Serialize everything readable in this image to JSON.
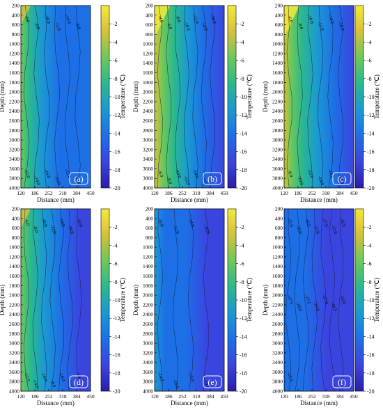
{
  "colors": {
    "scale": [
      "#2a1ea8",
      "#3a45e0",
      "#1d6fe6",
      "#1a99d4",
      "#2bb88e",
      "#6cc85a",
      "#d4c13a",
      "#f4e93a"
    ]
  },
  "chart_data": {
    "type": "heatmap",
    "panels": [
      {
        "label": "(a)",
        "contour_labels": [
          "-6.0",
          "-8.0",
          "-10.0",
          "-12.0",
          "-14.0",
          "-8.0",
          "-12.0",
          "-14.0",
          "-16.0",
          "-10.0",
          "-12.0",
          "-16.0"
        ]
      },
      {
        "label": "(b)",
        "contour_labels": [
          "-4.0",
          "-6.0",
          "-8.0",
          "-10.0",
          "-12.0",
          "-14.0",
          "-16.0",
          "-6.0",
          "-8.0",
          "-10.0",
          "-12.0",
          "-14.0",
          "-16.0"
        ]
      },
      {
        "label": "(c)",
        "contour_labels": [
          "-6.0",
          "-8.0",
          "-10.0",
          "-12.0",
          "-14.0",
          "-16.0",
          "-8.0",
          "-10.0",
          "-12.0",
          "-14.0",
          "-16.0",
          "-8.0"
        ]
      },
      {
        "label": "(d)",
        "contour_labels": [
          "-6.0",
          "-8.0",
          "-10.0",
          "-12.0",
          "-14.0",
          "-16.0",
          "-10.0",
          "-12.0",
          "-14.0",
          "-16.0",
          "-8.0",
          "-10.0",
          "-12.0",
          "-14.0"
        ]
      },
      {
        "label": "(e)",
        "contour_labels": [
          "-10.0",
          "-12.0",
          "-14.0",
          "-16.0",
          "-14.0",
          "-16.0",
          "-12.0",
          "-14.0"
        ]
      },
      {
        "label": "(f)",
        "contour_labels": [
          "-15.5",
          "-16.0",
          "-16.5",
          "-17.0",
          "-17.5",
          "-17.0",
          "-16.5",
          "-17.5",
          "-18.0",
          "-17.5",
          "-17.0",
          "-17.0",
          "-16.5",
          "-16.0",
          "-15.5"
        ]
      }
    ],
    "x_ticks": [
      "120",
      "186",
      "252",
      "318",
      "384",
      "450"
    ],
    "y_ticks": [
      "200",
      "400",
      "600",
      "800",
      "1000",
      "1200",
      "1400",
      "1600",
      "1800",
      "2000",
      "2200",
      "2400",
      "2600",
      "2800",
      "3000",
      "3200",
      "3400",
      "3600",
      "3800",
      "4000"
    ],
    "x_range": [
      120,
      450
    ],
    "y_range": [
      200,
      4000
    ],
    "xlabel": "Distance (mm)",
    "ylabel": "Depth (mm)",
    "colorbar": {
      "label": "Temperature (℃)",
      "ticks": [
        "-2",
        "-4",
        "-6",
        "-8",
        "-10",
        "-12",
        "-14",
        "-16",
        "-18",
        "-20"
      ],
      "range": [
        -20,
        0
      ]
    }
  }
}
